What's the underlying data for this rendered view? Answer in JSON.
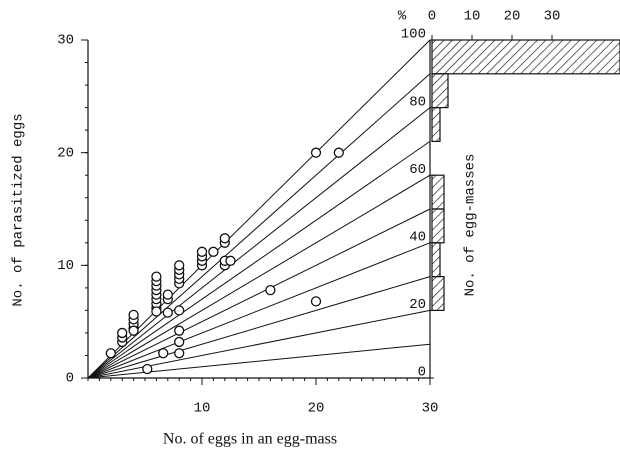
{
  "chart_data": [
    {
      "type": "scatter",
      "xlabel": "No. of eggs in an egg-mass",
      "ylabel": "No. of parasitized eggs",
      "xlim": [
        0,
        30
      ],
      "xticks": [
        10,
        20,
        30
      ],
      "ylim": [
        0,
        30
      ],
      "yticks": [
        0,
        10,
        20,
        30
      ],
      "x": [
        2,
        3,
        3,
        3,
        4,
        4,
        4,
        4,
        4,
        5.2,
        6,
        6,
        6,
        6,
        6,
        6,
        6,
        6,
        6,
        6.6,
        7,
        7,
        7,
        8,
        8,
        8,
        8,
        8,
        8,
        8,
        8,
        8,
        10,
        10,
        10,
        10,
        11,
        12,
        12,
        12,
        12,
        12.5,
        16,
        20,
        20,
        22
      ],
      "y": [
        2.2,
        3.2,
        3.6,
        4,
        4.4,
        4.8,
        5.2,
        5.6,
        4.2,
        0.8,
        6.2,
        6.6,
        7,
        7.4,
        7.8,
        8.2,
        8.6,
        9,
        5.9,
        2.2,
        5.8,
        7,
        7.4,
        2.2,
        3.2,
        4.2,
        6,
        8.4,
        8.8,
        9.2,
        9.6,
        10,
        10,
        10.4,
        10.8,
        11.2,
        11.2,
        10,
        10.4,
        12,
        12.4,
        10.4,
        7.8,
        6.8,
        20,
        20
      ],
      "ratio_lines": [
        0,
        10,
        20,
        30,
        40,
        50,
        60,
        70,
        80,
        90,
        100
      ],
      "y2label": "%",
      "y2lim": [
        0,
        100
      ],
      "y2ticks": [
        0,
        20,
        40,
        60,
        80,
        100
      ]
    },
    {
      "type": "histogram",
      "ylabel": "No. of egg-masses",
      "orientation": "horizontal",
      "bins": [
        0,
        10,
        20,
        30,
        40,
        50,
        60,
        70,
        80,
        90,
        100
      ],
      "counts": [
        0,
        0,
        3,
        2,
        3,
        3,
        0,
        2,
        4,
        47
      ],
      "xlim": [
        0,
        47
      ],
      "xticks": [
        0,
        10,
        20,
        30
      ]
    }
  ]
}
